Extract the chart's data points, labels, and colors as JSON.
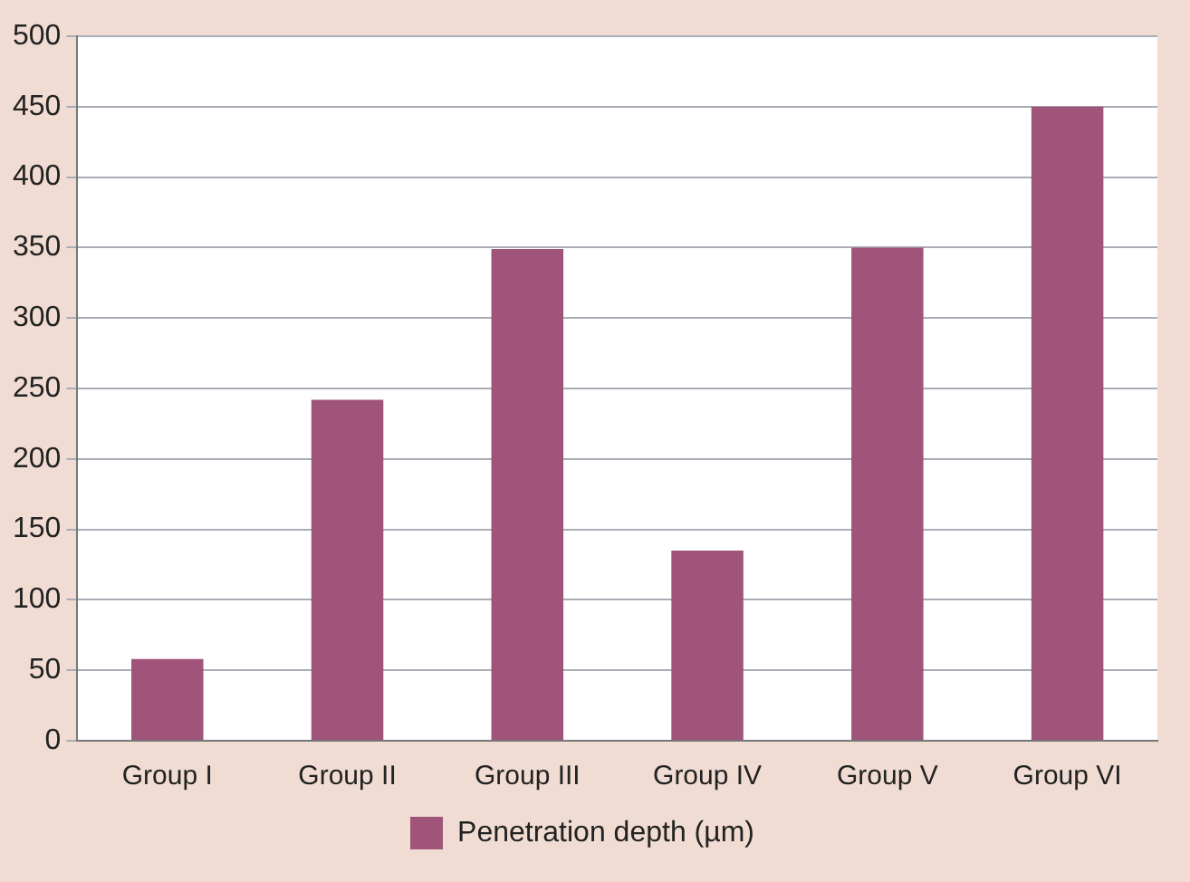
{
  "chart_data": {
    "type": "bar",
    "categories": [
      "Group I",
      "Group II",
      "Group III",
      "Group IV",
      "Group V",
      "Group VI"
    ],
    "series": [
      {
        "name": "Penetration depth (µm)",
        "color": "#a0547a",
        "values": [
          58,
          242,
          349,
          135,
          350,
          450
        ]
      }
    ],
    "ylim": [
      0,
      500
    ],
    "yticks": [
      0,
      50,
      100,
      150,
      200,
      250,
      300,
      350,
      400,
      450,
      500
    ],
    "grid": "y",
    "legend": "bottom"
  }
}
